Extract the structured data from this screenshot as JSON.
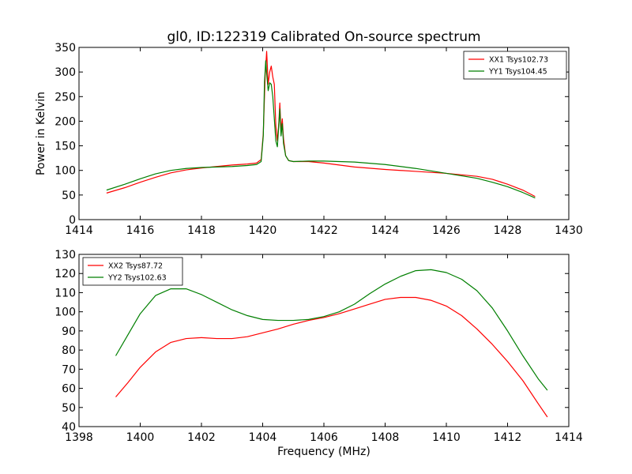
{
  "chart_data": [
    {
      "type": "line",
      "title": "gl0, ID:122319 Calibrated On-source spectrum",
      "xlabel": "",
      "ylabel": "Power in Kelvin",
      "xlim": [
        1414,
        1430
      ],
      "ylim": [
        0,
        350
      ],
      "xticks": [
        "1414",
        "1416",
        "1418",
        "1420",
        "1422",
        "1424",
        "1426",
        "1428",
        "1430"
      ],
      "yticks": [
        "0",
        "50",
        "100",
        "150",
        "200",
        "250",
        "300",
        "350"
      ],
      "legend_position": "top-right",
      "grid": false,
      "series": [
        {
          "name": "XX1 Tsys102.73",
          "color": "#ff0000",
          "points": [
            [
              1414.9,
              54
            ],
            [
              1415.5,
              65
            ],
            [
              1416,
              76
            ],
            [
              1416.5,
              86
            ],
            [
              1417,
              95
            ],
            [
              1417.5,
              101
            ],
            [
              1418,
              105
            ],
            [
              1418.5,
              108
            ],
            [
              1419,
              111
            ],
            [
              1419.5,
              113
            ],
            [
              1419.8,
              115
            ],
            [
              1419.95,
              122
            ],
            [
              1420.02,
              175
            ],
            [
              1420.08,
              290
            ],
            [
              1420.13,
              342
            ],
            [
              1420.18,
              275
            ],
            [
              1420.23,
              300
            ],
            [
              1420.28,
              312
            ],
            [
              1420.33,
              290
            ],
            [
              1420.38,
              275
            ],
            [
              1420.43,
              190
            ],
            [
              1420.48,
              160
            ],
            [
              1420.53,
              200
            ],
            [
              1420.56,
              237
            ],
            [
              1420.6,
              180
            ],
            [
              1420.64,
              205
            ],
            [
              1420.68,
              165
            ],
            [
              1420.75,
              130
            ],
            [
              1420.85,
              120
            ],
            [
              1421,
              118
            ],
            [
              1421.5,
              118
            ],
            [
              1422,
              115
            ],
            [
              1423,
              107
            ],
            [
              1424,
              102
            ],
            [
              1425,
              98
            ],
            [
              1426,
              94
            ],
            [
              1427,
              88
            ],
            [
              1427.5,
              82
            ],
            [
              1428,
              72
            ],
            [
              1428.5,
              60
            ],
            [
              1428.9,
              47
            ]
          ]
        },
        {
          "name": "YY1 Tsys104.45",
          "color": "#007f00",
          "points": [
            [
              1414.9,
              60
            ],
            [
              1415.5,
              72
            ],
            [
              1416,
              83
            ],
            [
              1416.5,
              93
            ],
            [
              1417,
              100
            ],
            [
              1417.5,
              104
            ],
            [
              1418,
              106
            ],
            [
              1418.5,
              107
            ],
            [
              1419,
              108
            ],
            [
              1419.5,
              110
            ],
            [
              1419.8,
              112
            ],
            [
              1419.95,
              118
            ],
            [
              1420.02,
              170
            ],
            [
              1420.06,
              280
            ],
            [
              1420.1,
              323
            ],
            [
              1420.14,
              290
            ],
            [
              1420.18,
              262
            ],
            [
              1420.23,
              278
            ],
            [
              1420.28,
              275
            ],
            [
              1420.33,
              250
            ],
            [
              1420.38,
              205
            ],
            [
              1420.43,
              160
            ],
            [
              1420.48,
              148
            ],
            [
              1420.53,
              195
            ],
            [
              1420.56,
              225
            ],
            [
              1420.6,
              170
            ],
            [
              1420.64,
              195
            ],
            [
              1420.68,
              155
            ],
            [
              1420.75,
              130
            ],
            [
              1420.85,
              120
            ],
            [
              1421,
              118
            ],
            [
              1421.5,
              119
            ],
            [
              1422,
              119
            ],
            [
              1423,
              117
            ],
            [
              1424,
              112
            ],
            [
              1425,
              104
            ],
            [
              1426,
              94
            ],
            [
              1427,
              84
            ],
            [
              1427.5,
              76
            ],
            [
              1428,
              67
            ],
            [
              1428.5,
              55
            ],
            [
              1428.9,
              44
            ]
          ]
        }
      ]
    },
    {
      "type": "line",
      "title": "",
      "xlabel": "Frequency (MHz)",
      "ylabel": "",
      "xlim": [
        1398,
        1414
      ],
      "ylim": [
        40,
        130
      ],
      "xticks": [
        "1398",
        "1400",
        "1402",
        "1404",
        "1406",
        "1408",
        "1410",
        "1412",
        "1414"
      ],
      "yticks": [
        "40",
        "50",
        "60",
        "70",
        "80",
        "90",
        "100",
        "110",
        "120",
        "130"
      ],
      "legend_position": "top-left",
      "grid": false,
      "series": [
        {
          "name": "XX2 Tsys87.72",
          "color": "#ff0000",
          "points": [
            [
              1399.2,
              55.5
            ],
            [
              1399.6,
              63
            ],
            [
              1400,
              71
            ],
            [
              1400.5,
              79
            ],
            [
              1401,
              84
            ],
            [
              1401.5,
              86
            ],
            [
              1402,
              86.5
            ],
            [
              1402.5,
              86
            ],
            [
              1403,
              86
            ],
            [
              1403.5,
              87
            ],
            [
              1404,
              89
            ],
            [
              1404.5,
              91
            ],
            [
              1405,
              93.5
            ],
            [
              1405.5,
              95.5
            ],
            [
              1406,
              97
            ],
            [
              1406.5,
              99
            ],
            [
              1407,
              101.5
            ],
            [
              1407.5,
              104
            ],
            [
              1408,
              106.5
            ],
            [
              1408.5,
              107.5
            ],
            [
              1409,
              107.5
            ],
            [
              1409.5,
              106
            ],
            [
              1410,
              103
            ],
            [
              1410.5,
              98
            ],
            [
              1411,
              91
            ],
            [
              1411.5,
              83
            ],
            [
              1412,
              74
            ],
            [
              1412.5,
              64
            ],
            [
              1413,
              52
            ],
            [
              1413.3,
              45
            ]
          ]
        },
        {
          "name": "YY2 Tsys102.63",
          "color": "#007f00",
          "points": [
            [
              1399.2,
              77
            ],
            [
              1399.6,
              88
            ],
            [
              1400,
              99
            ],
            [
              1400.5,
              108.5
            ],
            [
              1401,
              112
            ],
            [
              1401.5,
              112
            ],
            [
              1402,
              109
            ],
            [
              1402.5,
              105
            ],
            [
              1403,
              101
            ],
            [
              1403.5,
              98
            ],
            [
              1404,
              96
            ],
            [
              1404.5,
              95.5
            ],
            [
              1405,
              95.5
            ],
            [
              1405.5,
              96
            ],
            [
              1406,
              97.5
            ],
            [
              1406.5,
              100
            ],
            [
              1407,
              104
            ],
            [
              1407.5,
              109.5
            ],
            [
              1408,
              114.5
            ],
            [
              1408.5,
              118.5
            ],
            [
              1409,
              121.5
            ],
            [
              1409.5,
              122
            ],
            [
              1410,
              120.5
            ],
            [
              1410.5,
              117
            ],
            [
              1411,
              111
            ],
            [
              1411.5,
              102
            ],
            [
              1412,
              90
            ],
            [
              1412.5,
              77
            ],
            [
              1413,
              65
            ],
            [
              1413.3,
              59
            ]
          ]
        }
      ]
    }
  ]
}
